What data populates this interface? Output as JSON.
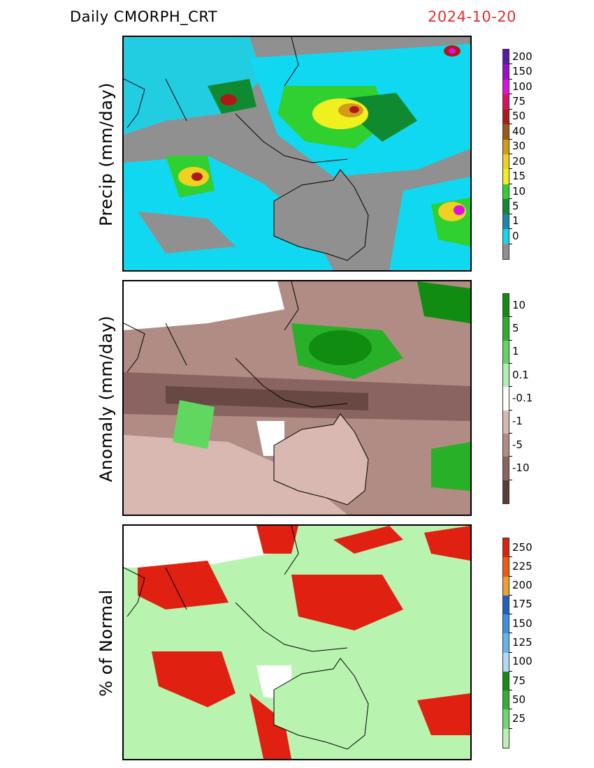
{
  "header": {
    "product": "Daily  CMORPH_CRT",
    "date": "2024-10-20"
  },
  "panels": [
    {
      "id": "precip",
      "ylabel": "Precip  (mm/day)",
      "legend": [
        {
          "label": "200",
          "color": "#5a1aa8"
        },
        {
          "label": "150",
          "color": "#9a0ec8"
        },
        {
          "label": "100",
          "color": "#e010e0"
        },
        {
          "label": "75",
          "color": "#e0105a"
        },
        {
          "label": "50",
          "color": "#b01818"
        },
        {
          "label": "40",
          "color": "#9a5a14"
        },
        {
          "label": "30",
          "color": "#d49a18"
        },
        {
          "label": "20",
          "color": "#f0d020"
        },
        {
          "label": "15",
          "color": "#f0f020"
        },
        {
          "label": "10",
          "color": "#30d030"
        },
        {
          "label": "5",
          "color": "#108a30"
        },
        {
          "label": "1",
          "color": "#1888b0"
        },
        {
          "label": "0",
          "color": "#10d8f0"
        },
        {
          "label": "",
          "color": "#909090"
        }
      ]
    },
    {
      "id": "anomaly",
      "ylabel": "Anomaly  (mm/day)",
      "legend": [
        {
          "label": "10",
          "color": "#108c10"
        },
        {
          "label": "5",
          "color": "#28b028"
        },
        {
          "label": "1",
          "color": "#60d860"
        },
        {
          "label": "0.1",
          "color": "#b0f0b0"
        },
        {
          "label": "-0.1",
          "color": "#ffffff"
        },
        {
          "label": "-1",
          "color": "#d8b8b0"
        },
        {
          "label": "-5",
          "color": "#b08c84"
        },
        {
          "label": "-10",
          "color": "#8a6460"
        },
        {
          "label": "",
          "color": "#5a3c38"
        }
      ]
    },
    {
      "id": "pct",
      "ylabel": "% of Normal",
      "legend": [
        {
          "label": "250",
          "color": "#e02010"
        },
        {
          "label": "225",
          "color": "#f05a10"
        },
        {
          "label": "200",
          "color": "#f0a030"
        },
        {
          "label": "175",
          "color": "#2060c0"
        },
        {
          "label": "150",
          "color": "#3c90e0"
        },
        {
          "label": "125",
          "color": "#64b4f0"
        },
        {
          "label": "100",
          "color": "#b4d8f8"
        },
        {
          "label": "75",
          "color": "#108c10"
        },
        {
          "label": "50",
          "color": "#30b030"
        },
        {
          "label": "25",
          "color": "#70d870"
        },
        {
          "label": "",
          "color": "#b8f4b0"
        }
      ]
    }
  ]
}
